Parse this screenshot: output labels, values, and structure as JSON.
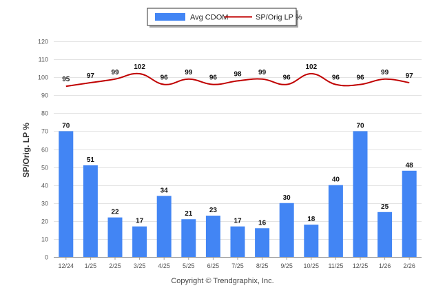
{
  "chart_data": {
    "type": "bar+line",
    "title": "",
    "ylabel": "SP/Orig. LP %",
    "xlabel": "",
    "ylim": [
      0,
      120
    ],
    "yticks": [
      0,
      10,
      20,
      30,
      40,
      50,
      60,
      70,
      80,
      90,
      100,
      110,
      120
    ],
    "grid": true,
    "legend_position": "top-center",
    "categories": [
      "12/24",
      "1/25",
      "2/25",
      "3/25",
      "4/25",
      "5/25",
      "6/25",
      "7/25",
      "8/25",
      "9/25",
      "10/25",
      "11/25",
      "12/25",
      "1/26",
      "2/26"
    ],
    "series": [
      {
        "name": "Avg CDOM",
        "type": "bar",
        "color": "#4285F4",
        "values": [
          70,
          51,
          22,
          17,
          34,
          21,
          23,
          17,
          16,
          30,
          18,
          40,
          70,
          25,
          48
        ]
      },
      {
        "name": "SP/Orig LP %",
        "type": "line",
        "color": "#C00000",
        "values": [
          95,
          97,
          99,
          102,
          96,
          99,
          96,
          98,
          99,
          96,
          102,
          96,
          96,
          99,
          97
        ]
      }
    ]
  },
  "footer": {
    "copyright": "Copyright © Trendgraphix, Inc."
  }
}
